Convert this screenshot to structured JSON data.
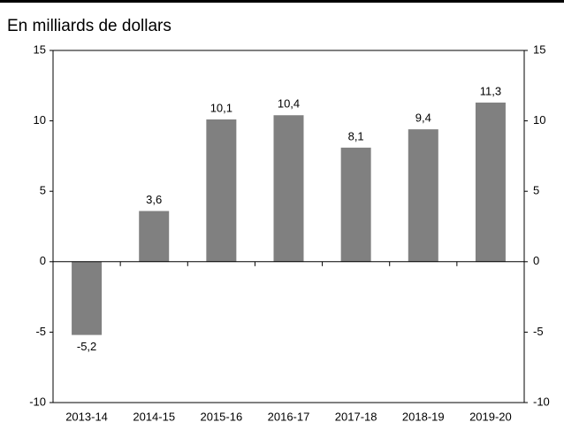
{
  "chart_data": {
    "type": "bar",
    "subtitle": "En milliards de dollars",
    "categories": [
      "2013-14",
      "2014-15",
      "2015-16",
      "2016-17",
      "2017-18",
      "2018-19",
      "2019-20"
    ],
    "values": [
      -5.2,
      3.6,
      10.1,
      10.4,
      8.1,
      9.4,
      11.3
    ],
    "value_labels": [
      "-5,2",
      "3,6",
      "10,1",
      "10,4",
      "8,1",
      "9,4",
      "11,3"
    ],
    "color": "#808080",
    "ylim": [
      -10,
      15
    ],
    "yticks": [
      -10,
      -5,
      0,
      5,
      10,
      15
    ],
    "y2lim": [
      -10,
      15
    ],
    "y2ticks": [
      -10,
      -5,
      0,
      5,
      10,
      15
    ]
  }
}
